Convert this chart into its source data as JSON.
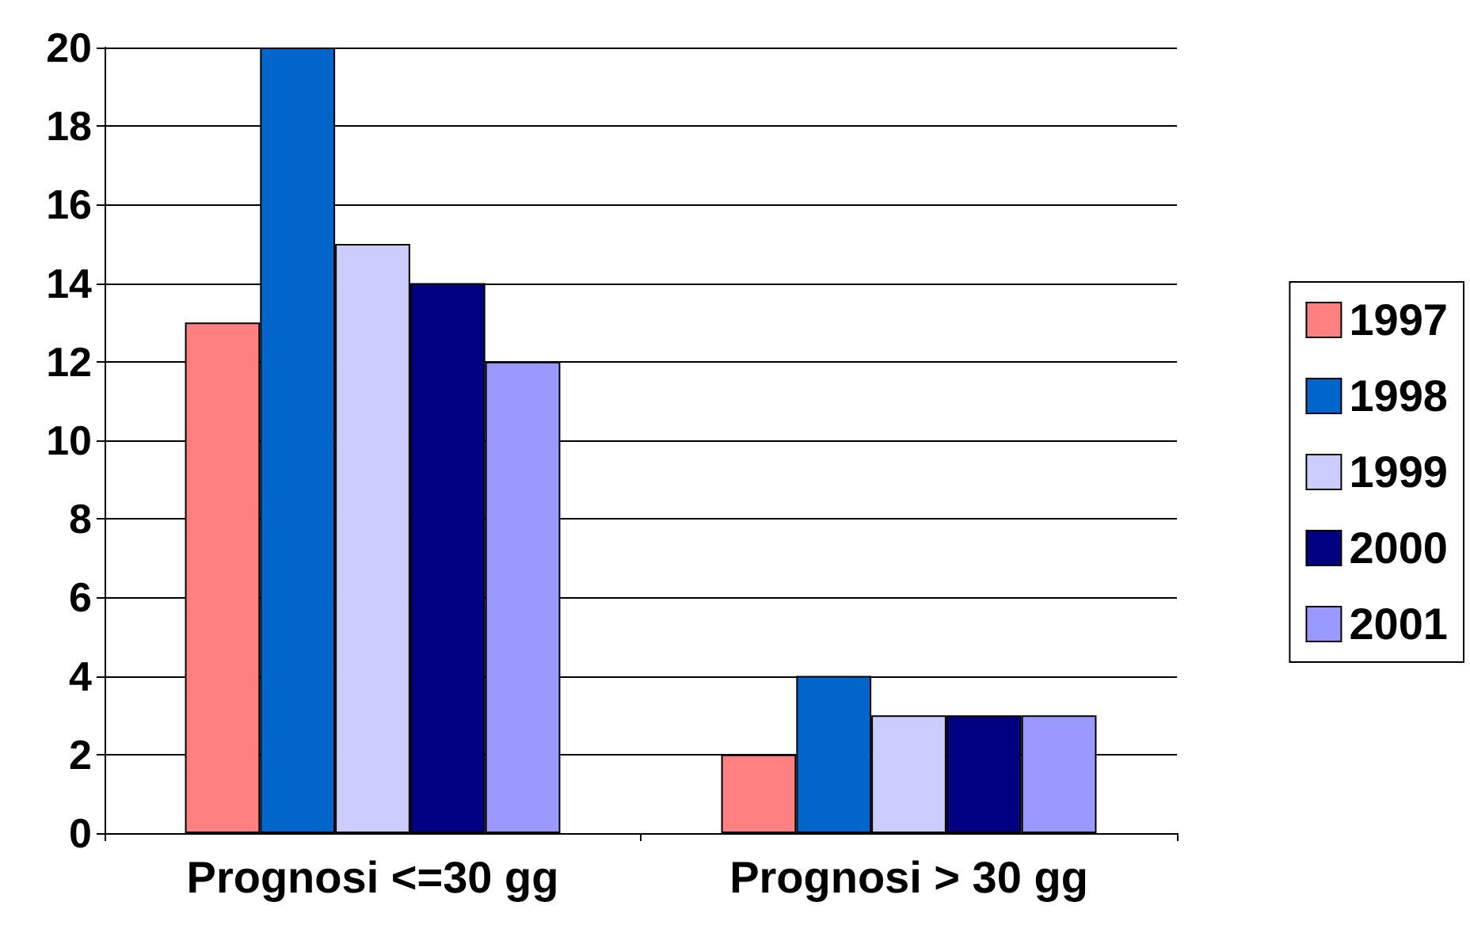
{
  "chart_data": {
    "type": "bar",
    "categories": [
      "Prognosi <=30 gg",
      "Prognosi > 30 gg"
    ],
    "series": [
      {
        "name": "1997",
        "color": "#ff8080",
        "values": [
          13,
          2
        ]
      },
      {
        "name": "1998",
        "color": "#0066cc",
        "values": [
          20,
          4
        ]
      },
      {
        "name": "1999",
        "color": "#ccccff",
        "values": [
          15,
          3
        ]
      },
      {
        "name": "2000",
        "color": "#000080",
        "values": [
          14,
          3
        ]
      },
      {
        "name": "2001",
        "color": "#9999ff",
        "values": [
          12,
          3
        ]
      }
    ],
    "ylim": [
      0,
      20
    ],
    "yticks": [
      0,
      2,
      4,
      6,
      8,
      10,
      12,
      14,
      16,
      18,
      20
    ],
    "grid": "y",
    "legend": "right"
  }
}
